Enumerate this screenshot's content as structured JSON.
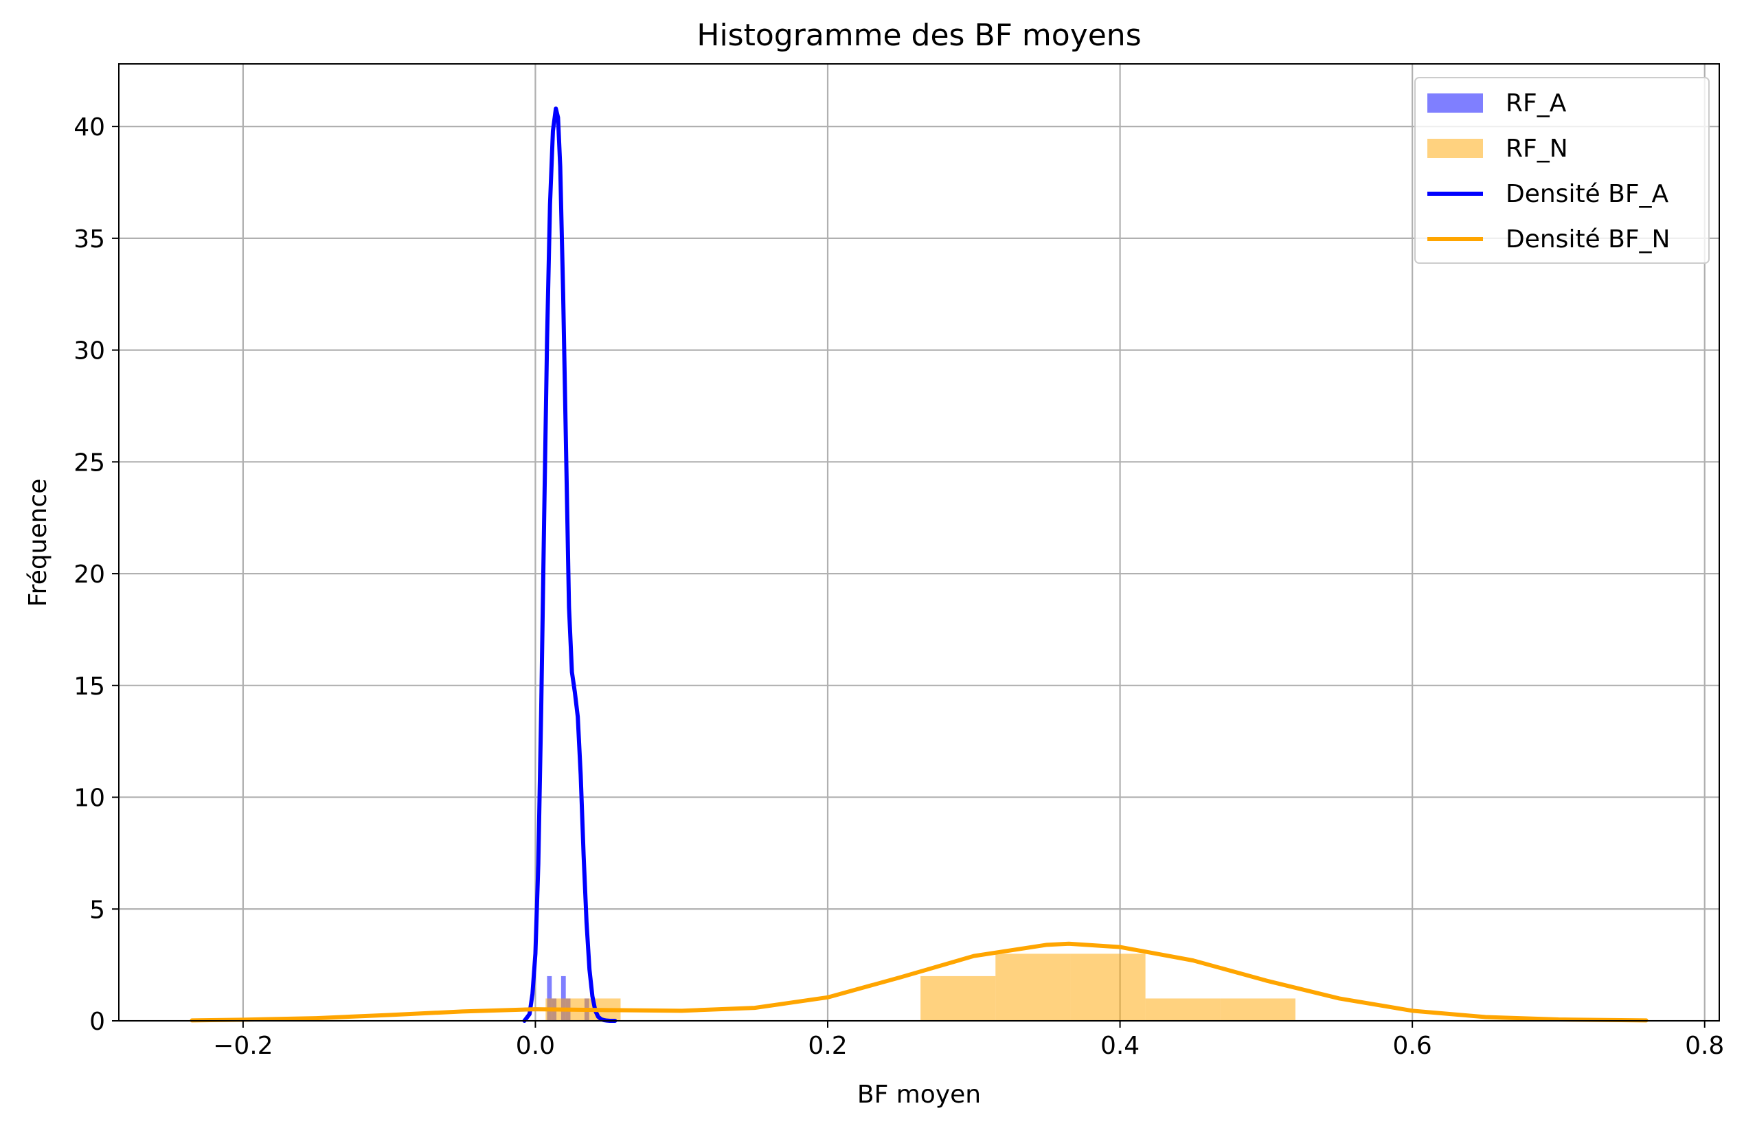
{
  "chart_data": {
    "type": "histogram",
    "title": "Histogramme des BF moyens",
    "xlabel": "BF moyen",
    "ylabel": "Fréquence",
    "xlim": [
      -0.285,
      0.81
    ],
    "ylim": [
      0,
      42.8
    ],
    "x_ticks": [
      {
        "value": -0.2,
        "label": "−0.2"
      },
      {
        "value": 0.0,
        "label": "0.0"
      },
      {
        "value": 0.2,
        "label": "0.2"
      },
      {
        "value": 0.4,
        "label": "0.4"
      },
      {
        "value": 0.6,
        "label": "0.6"
      },
      {
        "value": 0.8,
        "label": "0.8"
      }
    ],
    "y_ticks": [
      {
        "value": 0,
        "label": "0"
      },
      {
        "value": 5,
        "label": "5"
      },
      {
        "value": 10,
        "label": "10"
      },
      {
        "value": 15,
        "label": "15"
      },
      {
        "value": 20,
        "label": "20"
      },
      {
        "value": 25,
        "label": "25"
      },
      {
        "value": 30,
        "label": "30"
      },
      {
        "value": 35,
        "label": "35"
      },
      {
        "value": 40,
        "label": "40"
      }
    ],
    "grid": true,
    "legend_position": "top-right",
    "histograms": [
      {
        "name": "RF_A",
        "color": "#0000ff",
        "opacity": 0.5,
        "bins": [
          {
            "x0": 0.008,
            "x1": 0.0112,
            "count": 2
          },
          {
            "x0": 0.0112,
            "x1": 0.0144,
            "count": 1
          },
          {
            "x0": 0.0144,
            "x1": 0.0176,
            "count": 0
          },
          {
            "x0": 0.0176,
            "x1": 0.0208,
            "count": 2
          },
          {
            "x0": 0.0208,
            "x1": 0.024,
            "count": 1
          },
          {
            "x0": 0.024,
            "x1": 0.0272,
            "count": 0
          },
          {
            "x0": 0.0272,
            "x1": 0.0304,
            "count": 0
          },
          {
            "x0": 0.0304,
            "x1": 0.0336,
            "count": 0
          },
          {
            "x0": 0.0336,
            "x1": 0.0368,
            "count": 1
          },
          {
            "x0": 0.0368,
            "x1": 0.04,
            "count": 0
          }
        ]
      },
      {
        "name": "RF_N",
        "color": "#ffa500",
        "opacity": 0.5,
        "bins": [
          {
            "x0": 0.007,
            "x1": 0.0583,
            "count": 1
          },
          {
            "x0": 0.0583,
            "x1": 0.1096,
            "count": 0
          },
          {
            "x0": 0.1096,
            "x1": 0.1609,
            "count": 0
          },
          {
            "x0": 0.1609,
            "x1": 0.2122,
            "count": 0
          },
          {
            "x0": 0.2122,
            "x1": 0.2635,
            "count": 0
          },
          {
            "x0": 0.2635,
            "x1": 0.3148,
            "count": 2
          },
          {
            "x0": 0.3148,
            "x1": 0.3661,
            "count": 3
          },
          {
            "x0": 0.3661,
            "x1": 0.4174,
            "count": 3
          },
          {
            "x0": 0.4174,
            "x1": 0.4687,
            "count": 1
          },
          {
            "x0": 0.4687,
            "x1": 0.52,
            "count": 1
          }
        ]
      }
    ],
    "series": [
      {
        "name": "Densité BF_A",
        "type": "line",
        "color": "#0000ff",
        "x": [
          -0.0075,
          -0.004,
          -0.002,
          0.0,
          0.002,
          0.004,
          0.006,
          0.008,
          0.01,
          0.012,
          0.014,
          0.0155,
          0.017,
          0.019,
          0.021,
          0.023,
          0.025,
          0.027,
          0.029,
          0.031,
          0.033,
          0.035,
          0.037,
          0.039,
          0.041,
          0.043,
          0.045,
          0.047,
          0.049,
          0.051,
          0.0545
        ],
        "y": [
          0.0,
          0.3,
          1.2,
          3.0,
          7.0,
          14.0,
          22.5,
          30.5,
          36.5,
          39.8,
          40.8,
          40.4,
          38.2,
          32.5,
          25.5,
          18.5,
          15.6,
          14.7,
          13.6,
          11.0,
          7.4,
          4.4,
          2.3,
          1.1,
          0.45,
          0.18,
          0.07,
          0.03,
          0.01,
          0.0,
          0.0
        ]
      },
      {
        "name": "Densité BF_N",
        "type": "line",
        "color": "#ffa500",
        "x": [
          -0.235,
          -0.2,
          -0.15,
          -0.1,
          -0.05,
          0.0,
          0.05,
          0.1,
          0.15,
          0.2,
          0.25,
          0.3,
          0.35,
          0.365,
          0.4,
          0.45,
          0.5,
          0.55,
          0.6,
          0.65,
          0.7,
          0.76
        ],
        "y": [
          0.02,
          0.05,
          0.12,
          0.26,
          0.42,
          0.52,
          0.48,
          0.45,
          0.58,
          1.05,
          1.95,
          2.9,
          3.4,
          3.45,
          3.3,
          2.7,
          1.8,
          1.0,
          0.45,
          0.17,
          0.06,
          0.02
        ]
      }
    ],
    "legend": [
      {
        "label": "RF_A",
        "kind": "patch",
        "color": "#0000ff",
        "opacity": 0.5
      },
      {
        "label": "RF_N",
        "kind": "patch",
        "color": "#ffa500",
        "opacity": 0.5
      },
      {
        "label": "Densité BF_A",
        "kind": "line",
        "color": "#0000ff"
      },
      {
        "label": "Densité BF_N",
        "kind": "line",
        "color": "#ffa500"
      }
    ]
  }
}
